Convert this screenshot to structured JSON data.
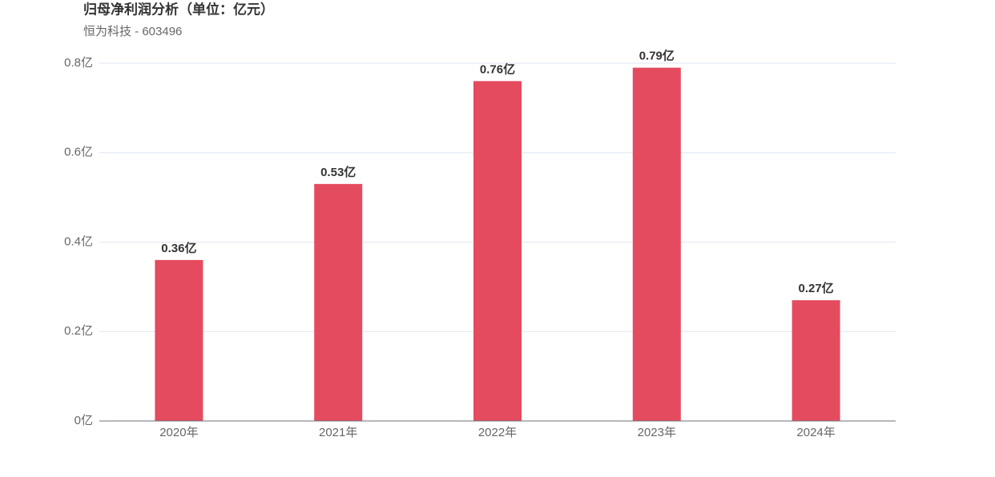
{
  "chart_data": {
    "type": "bar",
    "title": "归母净利润分析（单位：亿元）",
    "subtitle": "恒为科技 - 603496",
    "categories": [
      "2020年",
      "2021年",
      "2022年",
      "2023年",
      "2024年"
    ],
    "values": [
      0.36,
      0.53,
      0.76,
      0.79,
      0.27
    ],
    "value_labels": [
      "0.36亿",
      "0.53亿",
      "0.76亿",
      "0.79亿",
      "0.27亿"
    ],
    "color": "#e44b5e",
    "ylim": [
      0,
      0.8
    ],
    "yticks": [
      {
        "value": 0,
        "label": "0亿"
      },
      {
        "value": 0.2,
        "label": "0.2亿"
      },
      {
        "value": 0.4,
        "label": "0.4亿"
      },
      {
        "value": 0.6,
        "label": "0.6亿"
      },
      {
        "value": 0.8,
        "label": "0.8亿"
      }
    ],
    "grid": true
  }
}
